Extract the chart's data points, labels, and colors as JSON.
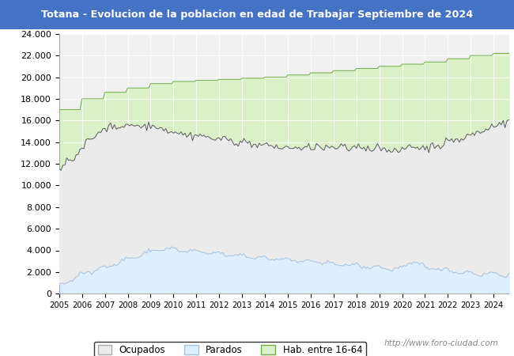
{
  "title": "Totana - Evolucion de la poblacion en edad de Trabajar Septiembre de 2024",
  "title_bg": "#4472c4",
  "title_color": "white",
  "ylim": [
    0,
    24000
  ],
  "yticks": [
    0,
    2000,
    4000,
    6000,
    8000,
    10000,
    12000,
    14000,
    16000,
    18000,
    20000,
    22000,
    24000
  ],
  "year_start": 2005,
  "year_end": 2024,
  "color_hab": "#d9f0c8",
  "color_parados": "#ddeeff",
  "color_ocupados": "#ebebeb",
  "line_hab": "#70ad47",
  "line_parados": "#9dc3e6",
  "line_ocupados": "#595959",
  "bg_plot": "#f0f0f0",
  "bg_figure": "white",
  "bg_title": "#4472c4",
  "watermark": "http://www.foro-ciudad.com",
  "legend_labels": [
    "Ocupados",
    "Parados",
    "Hab. entre 16-64"
  ]
}
